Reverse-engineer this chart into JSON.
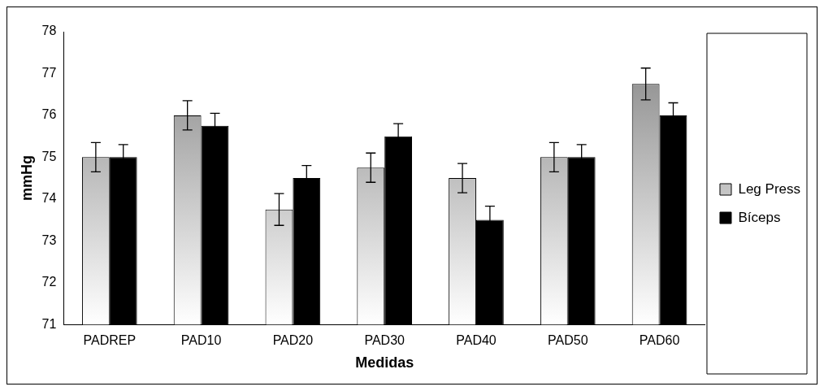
{
  "chart_data": {
    "type": "bar",
    "xlabel": "Medidas",
    "ylabel": "mmHg",
    "categories": [
      "PADREP",
      "PAD10",
      "PAD20",
      "PAD30",
      "PAD40",
      "PAD50",
      "PAD60"
    ],
    "series": [
      {
        "name": "Leg Press",
        "color": "#808080",
        "values": [
          75,
          76,
          73.75,
          74.75,
          74.5,
          75,
          76.75
        ],
        "errors": [
          0.35,
          0.35,
          0.38,
          0.35,
          0.35,
          0.35,
          0.38
        ]
      },
      {
        "name": "Bíceps",
        "color": "#000000",
        "values": [
          75,
          75.75,
          74.5,
          75.5,
          73.5,
          75,
          76
        ],
        "errors": [
          0.3,
          0.3,
          0.3,
          0.3,
          0.33,
          0.3,
          0.3
        ]
      }
    ],
    "ylim": [
      71,
      78
    ],
    "yticks": [
      71,
      72,
      73,
      74,
      75,
      76,
      77,
      78
    ],
    "grid": false,
    "legend": "right"
  }
}
